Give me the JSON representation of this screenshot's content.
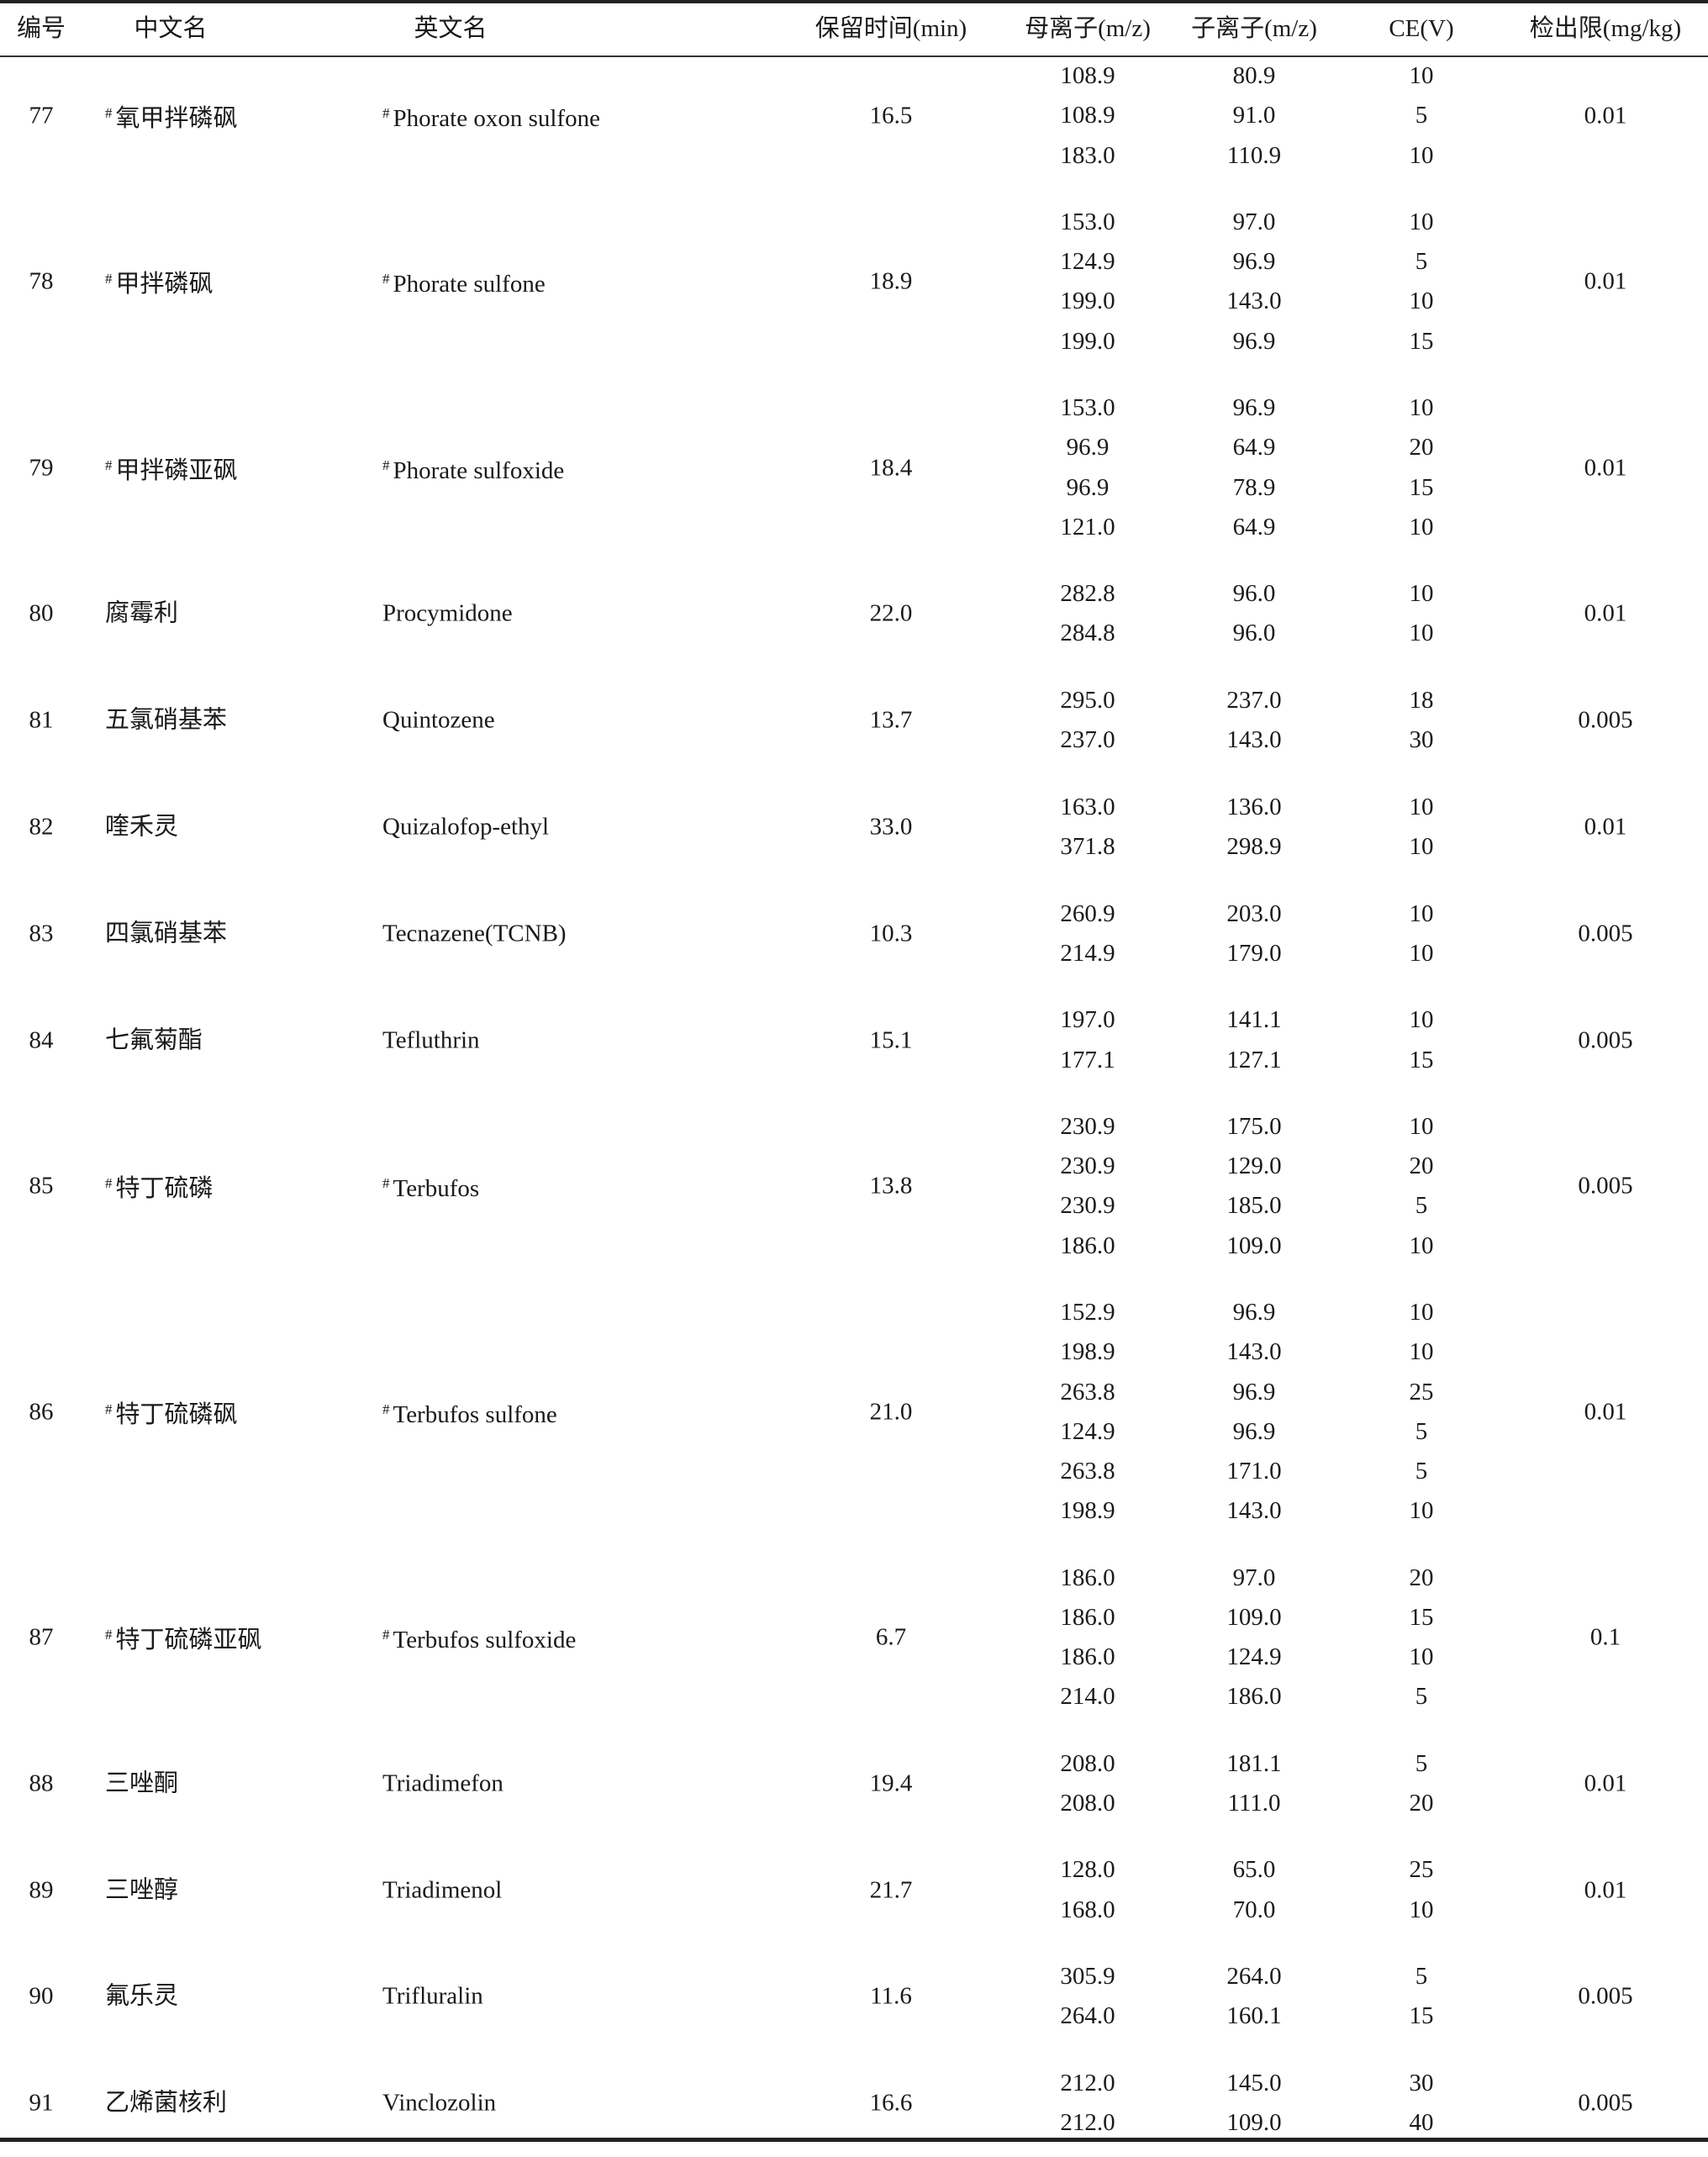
{
  "table": {
    "headers": {
      "no": "编号",
      "cn_name": "中文名",
      "en_name": "英文名",
      "rt": "保留时间(min)",
      "precursor": "母离子(m/z)",
      "product": "子离子(m/z)",
      "ce": "CE(V)",
      "lod": "检出限(mg/kg)"
    },
    "rows": [
      {
        "no": "77",
        "marker": "#",
        "cn": "氧甲拌磷砜",
        "en": "Phorate oxon sulfone",
        "rt": "16.5",
        "lod": "0.01",
        "transitions": [
          [
            "108.9",
            "80.9",
            "10"
          ],
          [
            "108.9",
            "91.0",
            "5"
          ],
          [
            "183.0",
            "110.9",
            "10"
          ]
        ]
      },
      {
        "no": "78",
        "marker": "#",
        "cn": "甲拌磷砜",
        "en": "Phorate sulfone",
        "rt": "18.9",
        "lod": "0.01",
        "transitions": [
          [
            "153.0",
            "97.0",
            "10"
          ],
          [
            "124.9",
            "96.9",
            "5"
          ],
          [
            "199.0",
            "143.0",
            "10"
          ],
          [
            "199.0",
            "96.9",
            "15"
          ]
        ]
      },
      {
        "no": "79",
        "marker": "#",
        "cn": "甲拌磷亚砜",
        "en": "Phorate sulfoxide",
        "rt": "18.4",
        "lod": "0.01",
        "transitions": [
          [
            "153.0",
            "96.9",
            "10"
          ],
          [
            "96.9",
            "64.9",
            "20"
          ],
          [
            "96.9",
            "78.9",
            "15"
          ],
          [
            "121.0",
            "64.9",
            "10"
          ]
        ]
      },
      {
        "no": "80",
        "marker": "",
        "cn": "腐霉利",
        "en": "Procymidone",
        "rt": "22.0",
        "lod": "0.01",
        "transitions": [
          [
            "282.8",
            "96.0",
            "10"
          ],
          [
            "284.8",
            "96.0",
            "10"
          ]
        ]
      },
      {
        "no": "81",
        "marker": "",
        "cn": "五氯硝基苯",
        "en": "Quintozene",
        "rt": "13.7",
        "lod": "0.005",
        "transitions": [
          [
            "295.0",
            "237.0",
            "18"
          ],
          [
            "237.0",
            "143.0",
            "30"
          ]
        ]
      },
      {
        "no": "82",
        "marker": "",
        "cn": "喹禾灵",
        "en": "Quizalofop-ethyl",
        "rt": "33.0",
        "lod": "0.01",
        "transitions": [
          [
            "163.0",
            "136.0",
            "10"
          ],
          [
            "371.8",
            "298.9",
            "10"
          ]
        ]
      },
      {
        "no": "83",
        "marker": "",
        "cn": "四氯硝基苯",
        "en": "Tecnazene(TCNB)",
        "rt": "10.3",
        "lod": "0.005",
        "transitions": [
          [
            "260.9",
            "203.0",
            "10"
          ],
          [
            "214.9",
            "179.0",
            "10"
          ]
        ]
      },
      {
        "no": "84",
        "marker": "",
        "cn": "七氟菊酯",
        "en": "Tefluthrin",
        "rt": "15.1",
        "lod": "0.005",
        "transitions": [
          [
            "197.0",
            "141.1",
            "10"
          ],
          [
            "177.1",
            "127.1",
            "15"
          ]
        ]
      },
      {
        "no": "85",
        "marker": "#",
        "cn": "特丁硫磷",
        "en": "Terbufos",
        "rt": "13.8",
        "lod": "0.005",
        "transitions": [
          [
            "230.9",
            "175.0",
            "10"
          ],
          [
            "230.9",
            "129.0",
            "20"
          ],
          [
            "230.9",
            "185.0",
            "5"
          ],
          [
            "186.0",
            "109.0",
            "10"
          ]
        ]
      },
      {
        "no": "86",
        "marker": "#",
        "cn": "特丁硫磷砜",
        "en": "Terbufos sulfone",
        "rt": "21.0",
        "lod": "0.01",
        "transitions": [
          [
            "152.9",
            "96.9",
            "10"
          ],
          [
            "198.9",
            "143.0",
            "10"
          ],
          [
            "263.8",
            "96.9",
            "25"
          ],
          [
            "124.9",
            "96.9",
            "5"
          ],
          [
            "263.8",
            "171.0",
            "5"
          ],
          [
            "198.9",
            "143.0",
            "10"
          ]
        ]
      },
      {
        "no": "87",
        "marker": "#",
        "cn": "特丁硫磷亚砜",
        "en": "Terbufos sulfoxide",
        "rt": "6.7",
        "lod": "0.1",
        "transitions": [
          [
            "186.0",
            "97.0",
            "20"
          ],
          [
            "186.0",
            "109.0",
            "15"
          ],
          [
            "186.0",
            "124.9",
            "10"
          ],
          [
            "214.0",
            "186.0",
            "5"
          ]
        ]
      },
      {
        "no": "88",
        "marker": "",
        "cn": "三唑酮",
        "en": "Triadimefon",
        "rt": "19.4",
        "lod": "0.01",
        "transitions": [
          [
            "208.0",
            "181.1",
            "5"
          ],
          [
            "208.0",
            "111.0",
            "20"
          ]
        ]
      },
      {
        "no": "89",
        "marker": "",
        "cn": "三唑醇",
        "en": "Triadimenol",
        "rt": "21.7",
        "lod": "0.01",
        "transitions": [
          [
            "128.0",
            "65.0",
            "25"
          ],
          [
            "168.0",
            "70.0",
            "10"
          ]
        ]
      },
      {
        "no": "90",
        "marker": "",
        "cn": "氟乐灵",
        "en": "Trifluralin",
        "rt": "11.6",
        "lod": "0.005",
        "transitions": [
          [
            "305.9",
            "264.0",
            "5"
          ],
          [
            "264.0",
            "160.1",
            "15"
          ]
        ]
      },
      {
        "no": "91",
        "marker": "",
        "cn": "乙烯菌核利",
        "en": "Vinclozolin",
        "rt": "16.6",
        "lod": "0.005",
        "transitions": [
          [
            "212.0",
            "145.0",
            "30"
          ],
          [
            "212.0",
            "109.0",
            "40"
          ]
        ]
      }
    ]
  }
}
